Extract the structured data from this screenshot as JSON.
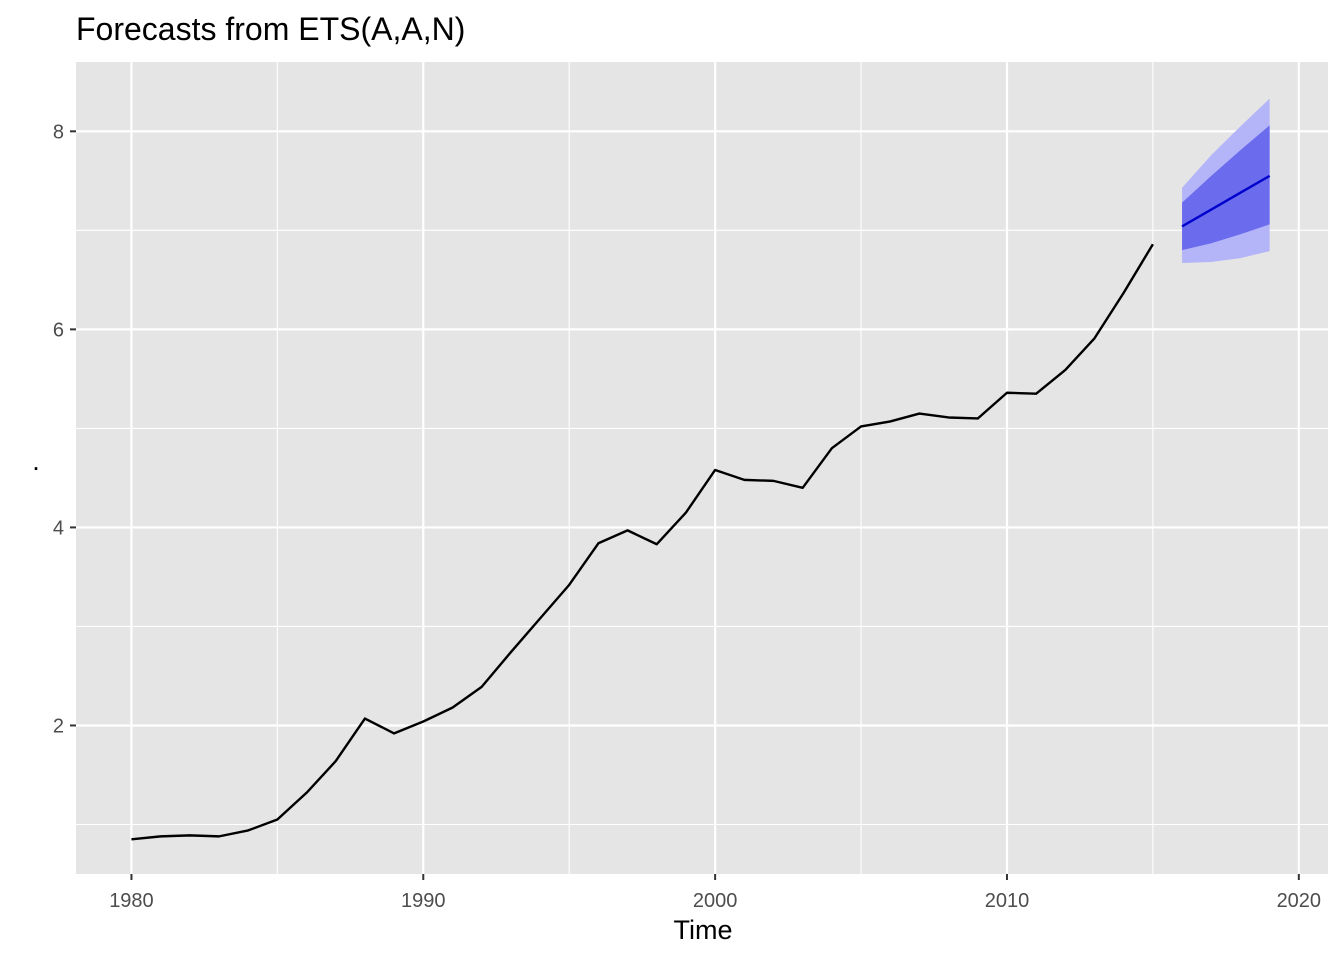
{
  "chart_data": {
    "type": "line",
    "title": "Forecasts from ETS(A,A,N)",
    "xlabel": "Time",
    "ylabel": ".",
    "xlim": [
      1978.1,
      2021.0
    ],
    "ylim": [
      0.5,
      8.7
    ],
    "x_ticks": [
      1980,
      1990,
      2000,
      2010,
      2020
    ],
    "x_tick_labels": [
      "1980",
      "1990",
      "2000",
      "2010",
      "2020"
    ],
    "y_ticks": [
      2,
      4,
      6,
      8
    ],
    "y_tick_labels": [
      "2",
      "4",
      "6",
      "8"
    ],
    "grid": true,
    "legend": "none",
    "colors": {
      "panel_background": "#e5e5e5",
      "grid": "#ffffff",
      "actual_line": "#000000",
      "forecast_line": "#0000cc",
      "interval_80": "#6b6bee",
      "interval_95": "#b4b4f8"
    },
    "series": [
      {
        "x": [
          1980,
          1981,
          1982,
          1983,
          1984,
          1985,
          1986,
          1987,
          1988,
          1989,
          1990,
          1991,
          1992,
          1993,
          1994,
          1995,
          1996,
          1997,
          1998,
          1999,
          2000,
          2001,
          2002,
          2003,
          2004,
          2005,
          2006,
          2007,
          2008,
          2009,
          2010,
          2011,
          2012,
          2013,
          2014,
          2015
        ],
        "values": [
          0.85,
          0.88,
          0.89,
          0.88,
          0.94,
          1.05,
          1.32,
          1.64,
          2.07,
          1.92,
          2.04,
          2.18,
          2.39,
          2.74,
          3.08,
          3.42,
          3.84,
          3.97,
          3.83,
          4.15,
          4.58,
          4.48,
          4.47,
          4.4,
          4.8,
          5.02,
          5.07,
          5.15,
          5.11,
          5.1,
          5.36,
          5.35,
          5.59,
          5.91,
          6.37,
          6.86
        ]
      },
      {
        "x": [
          2016,
          2017,
          2018,
          2019
        ],
        "values": [
          7.04,
          7.21,
          7.38,
          7.55
        ],
        "lo80": [
          6.8,
          6.87,
          6.96,
          7.06
        ],
        "hi80": [
          7.28,
          7.55,
          7.81,
          8.06
        ],
        "lo95": [
          6.67,
          6.68,
          6.72,
          6.79
        ],
        "hi95": [
          7.43,
          7.76,
          8.05,
          8.33
        ]
      }
    ]
  }
}
